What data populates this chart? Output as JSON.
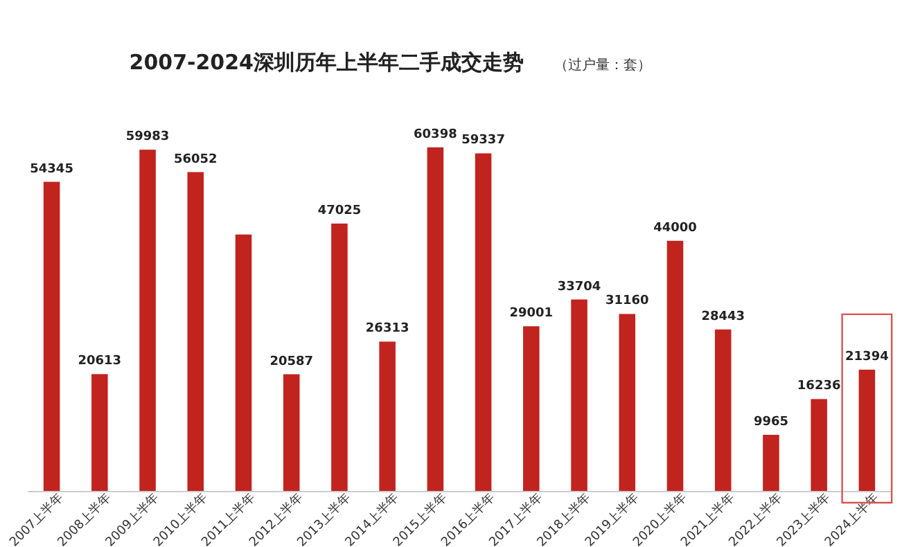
{
  "chart_data": {
    "type": "bar",
    "title": "2007-2024深圳历年上半年二手成交走势",
    "subtitle": "（过户量：套）",
    "categories": [
      "2007上半年",
      "2008上半年",
      "2009上半年",
      "2010上半年",
      "2011上半年",
      "2012上半年",
      "2013上半年",
      "2014上半年",
      "2015上半年",
      "2016上半年",
      "2017上半年",
      "2018上半年",
      "2019上半年",
      "2020上半年",
      "2021上半年",
      "2022上半年",
      "2023上半年",
      "2024上半年"
    ],
    "values": [
      54345,
      20613,
      59983,
      56052,
      45100,
      20587,
      47025,
      26313,
      60398,
      59337,
      29001,
      33704,
      31160,
      44000,
      28443,
      9965,
      16236,
      21394
    ],
    "value_labels": [
      "54345",
      "20613",
      "59983",
      "56052",
      null,
      "20587",
      "47025",
      "26313",
      "60398",
      "59337",
      "29001",
      "33704",
      "31160",
      "44000",
      "28443",
      "9965",
      "16236",
      "21394"
    ],
    "color": "#c1231e",
    "tick_labels": "x"
  }
}
